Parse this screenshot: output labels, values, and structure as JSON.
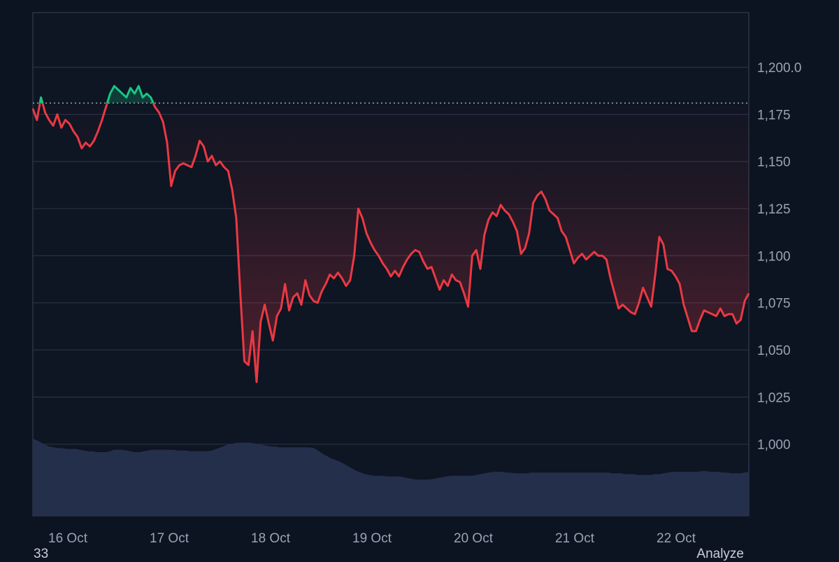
{
  "chart_data": {
    "type": "line",
    "ylim": [
      962,
      1229
    ],
    "baseline": 1181,
    "y_ticks": [
      1000,
      1025,
      1050,
      1075,
      1100,
      1125,
      1150,
      1175,
      1200
    ],
    "y_tick_labels": [
      "1,000",
      "1,025",
      "1,050",
      "1,075",
      "1,100",
      "1,125",
      "1,150",
      "1,175",
      "1,200.0"
    ],
    "x_tick_labels": [
      "16 Oct",
      "17 Oct",
      "18 Oct",
      "19 Oct",
      "20 Oct",
      "21 Oct",
      "22 Oct"
    ],
    "series": [
      {
        "values": [
          1178,
          1172,
          1184,
          1176,
          1172,
          1169,
          1175,
          1168,
          1172,
          1170,
          1166,
          1163,
          1157,
          1160,
          1158,
          1161,
          1166,
          1172,
          1179,
          1186,
          1190,
          1188,
          1186,
          1184,
          1189,
          1186,
          1190,
          1184,
          1186,
          1184,
          1179,
          1176,
          1171,
          1160,
          1137,
          1145,
          1148,
          1149,
          1148,
          1147,
          1153,
          1161,
          1158,
          1150,
          1153,
          1148,
          1150,
          1147,
          1145,
          1135,
          1120,
          1080,
          1044,
          1042,
          1060,
          1033,
          1065,
          1074,
          1064,
          1055,
          1068,
          1072,
          1085,
          1071,
          1078,
          1080,
          1074,
          1087,
          1079,
          1076,
          1075,
          1081,
          1085,
          1090,
          1088,
          1091,
          1088,
          1084,
          1087,
          1100,
          1125,
          1120,
          1112,
          1107,
          1103,
          1100,
          1096,
          1093,
          1089,
          1092,
          1089,
          1094,
          1098,
          1101,
          1103,
          1102,
          1097,
          1093,
          1094,
          1088,
          1082,
          1087,
          1084,
          1090,
          1087,
          1086,
          1080,
          1073,
          1100,
          1103,
          1093,
          1111,
          1119,
          1123,
          1121,
          1127,
          1124,
          1122,
          1118,
          1113,
          1101,
          1104,
          1112,
          1128,
          1132,
          1134,
          1130,
          1124,
          1122,
          1120,
          1113,
          1110,
          1103,
          1096,
          1099,
          1101,
          1098,
          1100,
          1102,
          1100,
          1100,
          1098,
          1088,
          1080,
          1072,
          1074,
          1072,
          1070,
          1069,
          1075,
          1083,
          1078,
          1073,
          1090,
          1110,
          1106,
          1093,
          1092,
          1089,
          1085,
          1074,
          1067,
          1060,
          1060,
          1066,
          1071,
          1070,
          1069,
          1068,
          1072,
          1068,
          1069,
          1069,
          1064,
          1066,
          1076,
          1080
        ]
      }
    ],
    "volume_values": [
      0.98,
      0.96,
      0.93,
      0.9,
      0.88,
      0.87,
      0.86,
      0.86,
      0.85,
      0.85,
      0.85,
      0.84,
      0.83,
      0.82,
      0.82,
      0.81,
      0.81,
      0.81,
      0.82,
      0.84,
      0.84,
      0.84,
      0.83,
      0.82,
      0.81,
      0.81,
      0.82,
      0.83,
      0.84,
      0.84,
      0.84,
      0.84,
      0.84,
      0.84,
      0.83,
      0.83,
      0.83,
      0.82,
      0.82,
      0.82,
      0.82,
      0.82,
      0.83,
      0.85,
      0.87,
      0.89,
      0.91,
      0.92,
      0.93,
      0.93,
      0.93,
      0.93,
      0.92,
      0.91,
      0.9,
      0.89,
      0.88,
      0.88,
      0.87,
      0.87,
      0.87,
      0.87,
      0.87,
      0.87,
      0.87,
      0.87,
      0.86,
      0.83,
      0.79,
      0.76,
      0.73,
      0.71,
      0.69,
      0.66,
      0.63,
      0.6,
      0.57,
      0.55,
      0.53,
      0.52,
      0.51,
      0.51,
      0.51,
      0.5,
      0.5,
      0.5,
      0.5,
      0.49,
      0.48,
      0.47,
      0.46,
      0.46,
      0.46,
      0.46,
      0.47,
      0.48,
      0.49,
      0.5,
      0.51,
      0.51,
      0.51,
      0.51,
      0.51,
      0.51,
      0.52,
      0.53,
      0.54,
      0.55,
      0.56,
      0.56,
      0.56,
      0.55,
      0.55,
      0.54,
      0.54,
      0.54,
      0.54,
      0.55,
      0.55,
      0.55,
      0.55,
      0.55,
      0.55,
      0.55,
      0.55,
      0.55,
      0.55,
      0.55,
      0.55,
      0.55,
      0.55,
      0.55,
      0.55,
      0.55,
      0.55,
      0.55,
      0.54,
      0.54,
      0.54,
      0.53,
      0.53,
      0.53,
      0.52,
      0.52,
      0.52,
      0.52,
      0.53,
      0.53,
      0.54,
      0.55,
      0.56,
      0.56,
      0.56,
      0.56,
      0.56,
      0.56,
      0.56,
      0.57,
      0.57,
      0.56,
      0.56,
      0.56,
      0.55,
      0.55,
      0.54,
      0.54,
      0.54,
      0.55,
      0.56
    ]
  },
  "footer": {
    "left_text": "33",
    "right_text": "Analyze"
  },
  "colors": {
    "background": "#0d1421",
    "up": "#16c784",
    "down": "#ea3943",
    "volume": "#26304f",
    "grid": "#2a3142",
    "tick_text": "#9aa3b5"
  }
}
